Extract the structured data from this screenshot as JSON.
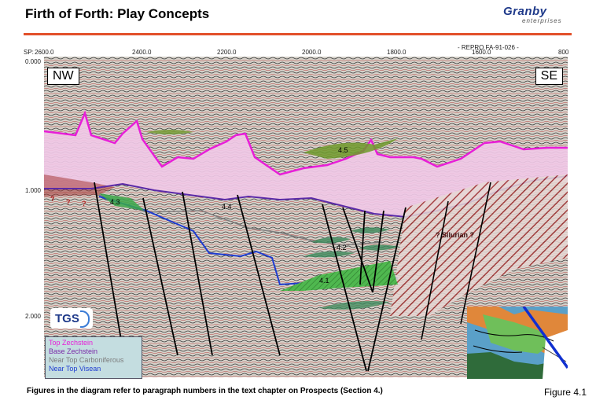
{
  "header": {
    "title": "Firth of Forth: Play Concepts",
    "logo_word": "Granby",
    "logo_sub": "enterprises"
  },
  "section": {
    "sp_label": "SP:",
    "sp_ticks": [
      "2600.0",
      "2400.0",
      "2200.0",
      "2000.0",
      "1800.0",
      "1600.0",
      "800"
    ],
    "repro": "- REPRO FA-91-026 -",
    "time_ticks": [
      "0.000",
      "1.000",
      "2.000"
    ],
    "nw": "NW",
    "se": "SE",
    "labels": {
      "p43": "4.3",
      "p44": "4.4",
      "p45": "4.5",
      "p42": "4.2",
      "p41": "4.1",
      "silurian": "? Silurian ?",
      "q1": "?",
      "q2": "?",
      "q3": "?"
    }
  },
  "legend": {
    "items": [
      {
        "label": "Top Zechstein",
        "color": "#e81ed8"
      },
      {
        "label": "Base Zechstein",
        "color": "#7a2aa8"
      },
      {
        "label": "Near Top Carboniferous",
        "color": "#7d7d7d"
      },
      {
        "label": "Near Top Visean",
        "color": "#1e3cd0"
      }
    ]
  },
  "tgs": "TGS",
  "caption": "Figures in the diagram refer to paragraph numbers in the text chapter on Prospects (Section 4.)",
  "figure_no": "Figure 4.1",
  "colors": {
    "zechstein_fill": "#f0c8e6",
    "prospect_green": "#4fb84f",
    "olive_green": "#6e9a2a",
    "silurian_hatch": "#9b2a2a",
    "accent_rule": "#e2502a"
  }
}
